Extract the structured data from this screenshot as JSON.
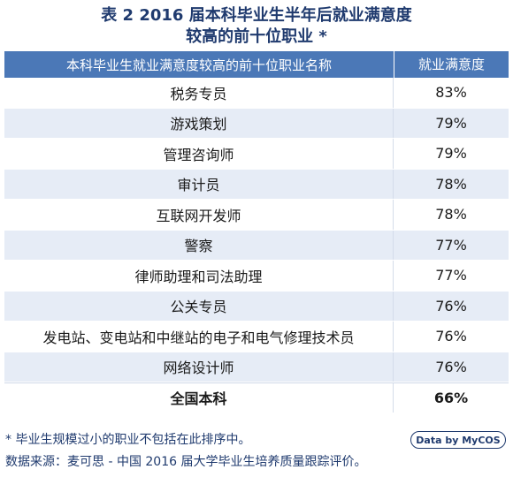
{
  "title": {
    "line1": "表 2  2016 届本科毕业生半年后就业满意度",
    "line2": "较高的前十位职业 *"
  },
  "table": {
    "headers": [
      "本科毕业生就业满意度较高的前十位职业名称",
      "就业满意度"
    ],
    "rows": [
      [
        "税务专员",
        "83%"
      ],
      [
        "游戏策划",
        "79%"
      ],
      [
        "管理咨询师",
        "79%"
      ],
      [
        "审计员",
        "78%"
      ],
      [
        "互联网开发师",
        "78%"
      ],
      [
        "警察",
        "77%"
      ],
      [
        "律师助理和司法助理",
        "77%"
      ],
      [
        "公关专员",
        "76%"
      ],
      [
        "发电站、变电站和中继站的电子和电气修理技术员",
        "76%"
      ],
      [
        "网络设计师",
        "76%"
      ]
    ],
    "total": [
      "全国本科",
      "66%"
    ]
  },
  "footnote": "* 毕业生规模过小的职业不包括在此排序中。",
  "source": "数据来源：麦可思 - 中国 2016 届大学毕业生培养质量跟踪评价。",
  "badge": "Data by MyCOS",
  "colors": {
    "header_bg": "#4b78b7",
    "stripe": "#e6ecf6",
    "text_accent": "#1f3a6e"
  }
}
